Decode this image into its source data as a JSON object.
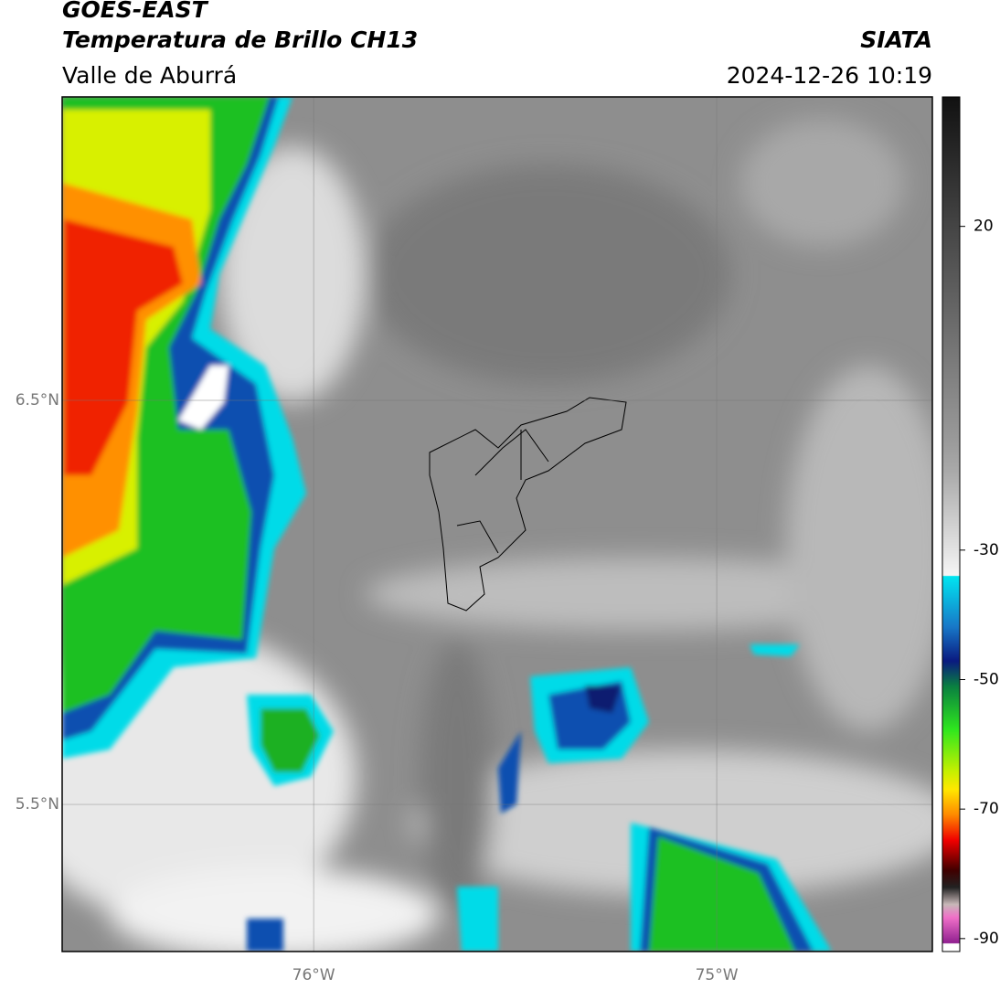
{
  "header": {
    "title": "GOES-EAST",
    "subtitle": "Temperatura de Brillo CH13",
    "region": "Valle de Aburrá",
    "source": "SIATA",
    "timestamp": "2024-12-26 10:19"
  },
  "map": {
    "lonlim": [
      -76.624,
      -74.465
    ],
    "latlim": [
      5.136,
      7.251
    ],
    "lat_ticks": [
      {
        "value": 6.5,
        "label": "6.5°N"
      },
      {
        "value": 5.5,
        "label": "5.5°N"
      }
    ],
    "lon_ticks": [
      {
        "value": -76,
        "label": "76°W"
      },
      {
        "value": -75,
        "label": "75°W"
      }
    ]
  },
  "colorbar": {
    "lim": [
      -92,
      40
    ],
    "ticks": [
      20,
      -30,
      -50,
      -70,
      -90
    ]
  }
}
